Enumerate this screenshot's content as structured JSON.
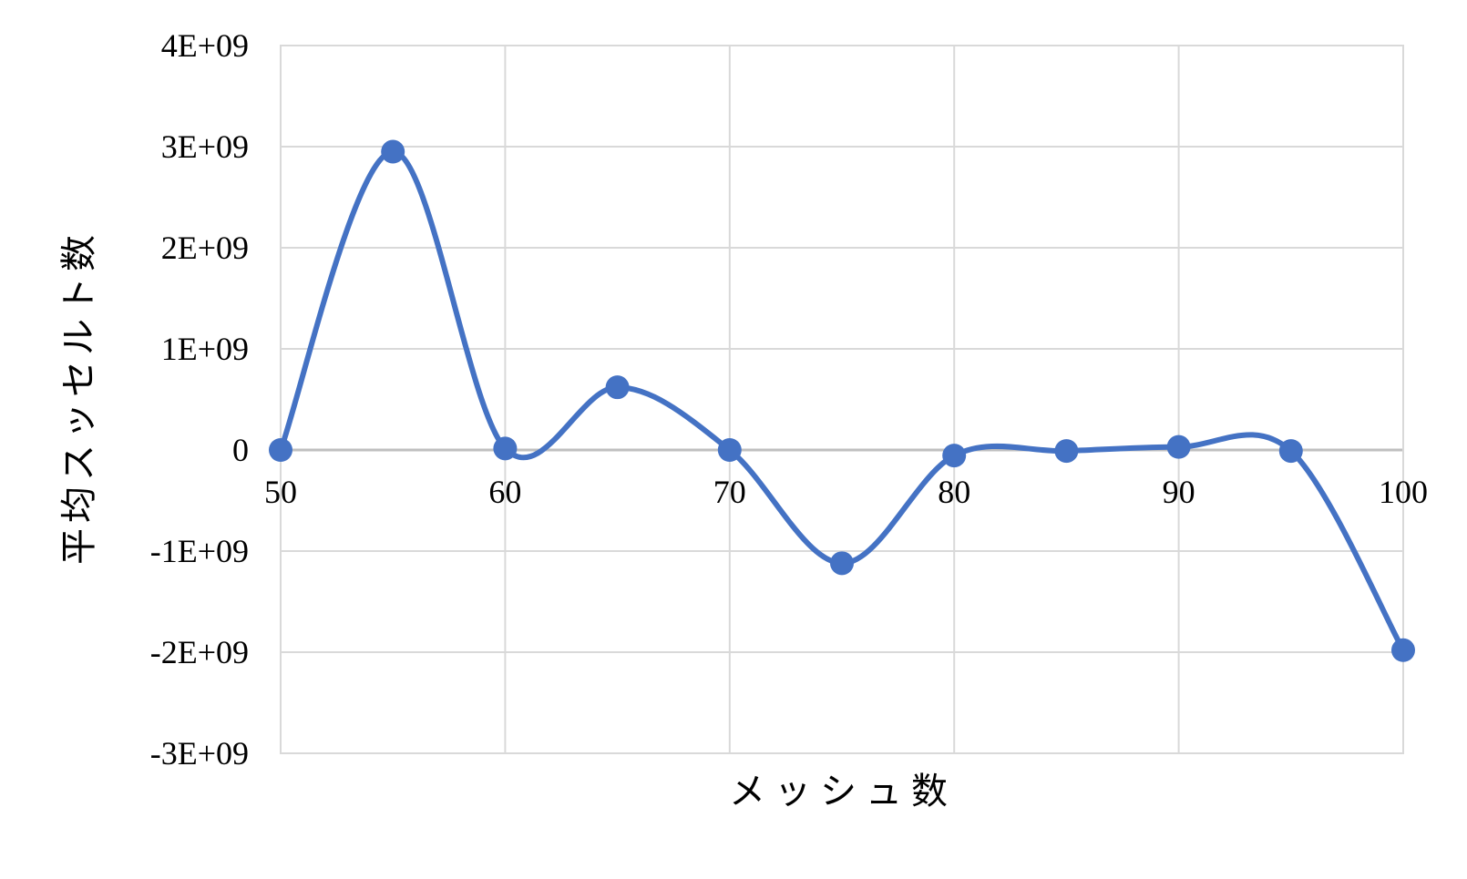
{
  "chart_data": {
    "type": "line",
    "smoothed": true,
    "title": "",
    "xlabel": "メッシュ数",
    "ylabel": "平均スッセルト数",
    "xlim": [
      50,
      100
    ],
    "ylim": [
      -3000000000,
      4000000000
    ],
    "x_ticks": [
      50,
      60,
      70,
      80,
      90,
      100
    ],
    "x_tick_labels": [
      "50",
      "60",
      "70",
      "80",
      "90",
      "100"
    ],
    "y_ticks": [
      4000000000,
      3000000000,
      2000000000,
      1000000000,
      0,
      -1000000000,
      -2000000000,
      -3000000000
    ],
    "y_tick_labels": [
      "4E+09",
      "3E+09",
      "2E+09",
      "1E+09",
      "0",
      "-1E+09",
      "-2E+09",
      "-3E+09"
    ],
    "x_tick_labels_position": "along zero line",
    "grid": true,
    "legend": "none",
    "series": [
      {
        "x": [
          50,
          55,
          60,
          65,
          70,
          75,
          80,
          85,
          90,
          95,
          100
        ],
        "values": [
          0,
          2950000000,
          15000000,
          620000000,
          0,
          -1120000000,
          -55000000,
          -10000000,
          30000000,
          -10000000,
          -1980000000
        ]
      }
    ],
    "colors": {
      "series": "#4472c4",
      "grid": "#d9d9d9",
      "zero_line": "#bfbfbf"
    }
  }
}
